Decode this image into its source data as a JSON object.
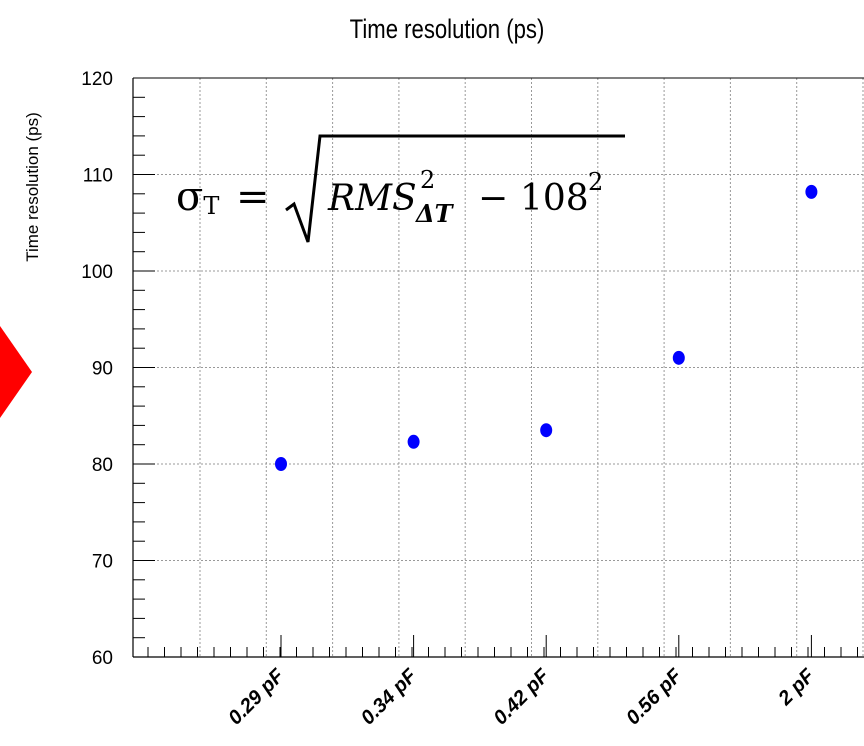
{
  "chart_data": {
    "type": "scatter",
    "title": "Time resolution (ps)",
    "xlabel": "",
    "ylabel": "Time resolution (ps)",
    "categories": [
      "0.29  pF",
      "0.34  pF",
      "0.42  pF",
      "0.56  pF",
      "2  pF"
    ],
    "values": [
      80.0,
      82.3,
      83.5,
      91.0,
      108.2
    ],
    "ylim": [
      60,
      120
    ],
    "yticks": [
      "60",
      "70",
      "80",
      "90",
      "100",
      "110",
      "120"
    ],
    "grid": true,
    "marker_color": "#0000ff",
    "formula": {
      "lhs": "σ",
      "lhs_sub": "T",
      "eq": "=",
      "rms": "RMS",
      "rms_sup": "2",
      "rms_sub": "ΔT",
      "minus": "−",
      "const": "108",
      "const_sup": "2"
    }
  },
  "colors": {
    "arrow": "#ff0000",
    "marker": "#0000ff"
  }
}
